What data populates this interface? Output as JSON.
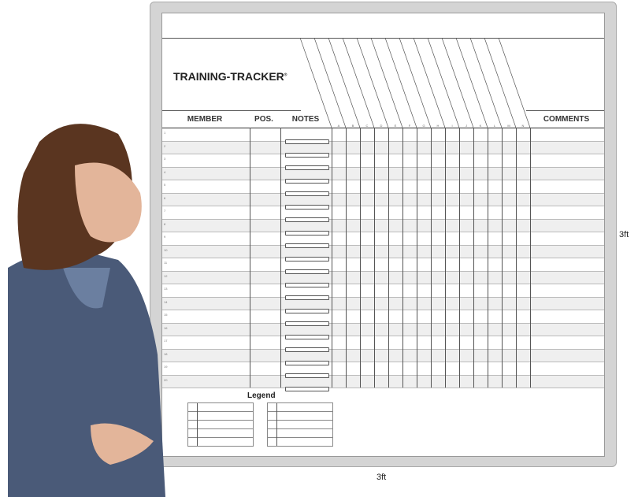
{
  "board": {
    "title": "TRAINING-TRACKER",
    "trademark": "®",
    "headers": {
      "member": "MEMBER",
      "pos": "POS.",
      "notes": "NOTES",
      "comments": "COMMENTS"
    },
    "skill_columns": [
      "A",
      "B",
      "C",
      "D",
      "E",
      "F",
      "G",
      "H",
      "I",
      "J",
      "K",
      "L",
      "M",
      "N"
    ],
    "row_numbers": [
      "1",
      "2",
      "3",
      "4",
      "5",
      "6",
      "7",
      "8",
      "9",
      "10",
      "11",
      "12",
      "13",
      "14",
      "15",
      "16",
      "17",
      "18",
      "19",
      "20"
    ],
    "legend_title": "Legend"
  },
  "dimensions": {
    "height": "3ft",
    "width": "3ft"
  },
  "colors": {
    "frame": "#d4d4d4",
    "alt_row": "#efefef",
    "jacket": "#4a5a78"
  }
}
